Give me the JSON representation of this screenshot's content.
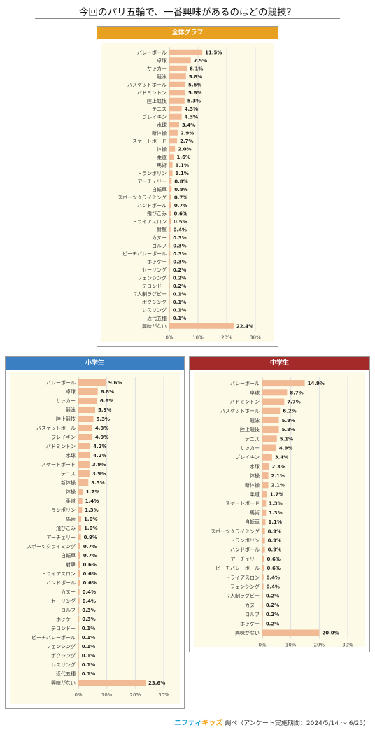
{
  "page": {
    "title": "今回のパリ五輪で、一番興味があるのはどの競技？"
  },
  "footer": {
    "logo_a": "ニフティ",
    "logo_b": "キッズ",
    "text": "調べ（アンケート実施期間：2024/5/14 ～ 6/25）"
  },
  "colors": {
    "bar": "#f2b995",
    "grid": "#dedede",
    "all_header": "#e8a020",
    "elem_header": "#3a7fc1",
    "mid_header": "#a42a2a"
  },
  "chart_data": [
    {
      "id": "all",
      "type": "bar",
      "orientation": "horizontal",
      "title": "全体グラフ",
      "xlim": [
        0,
        30
      ],
      "xticks": [
        "0%",
        "10%",
        "20%",
        "30%"
      ],
      "grid": true,
      "categories": [
        "バレーボール",
        "卓球",
        "サッカー",
        "競泳",
        "バスケットボール",
        "バドミントン",
        "陸上競技",
        "テニス",
        "ブレイキン",
        "水球",
        "新体操",
        "スケートボード",
        "体操",
        "柔道",
        "馬術",
        "トランポリン",
        "アーチェリー",
        "自転車",
        "スポーツクライミング",
        "ハンドボール",
        "飛びこみ",
        "トライアスロン",
        "射撃",
        "カヌー",
        "ゴルフ",
        "ビーチバレーボール",
        "ホッケー",
        "セーリング",
        "フェンシング",
        "テコンドー",
        "7人制ラグビー",
        "ボクシング",
        "レスリング",
        "近代五種",
        "興味がない"
      ],
      "values": [
        11.5,
        7.5,
        6.1,
        5.8,
        5.6,
        5.6,
        5.3,
        4.3,
        4.3,
        3.4,
        2.9,
        2.7,
        2.0,
        1.6,
        1.1,
        1.1,
        0.8,
        0.8,
        0.7,
        0.7,
        0.6,
        0.5,
        0.4,
        0.3,
        0.3,
        0.3,
        0.3,
        0.2,
        0.2,
        0.2,
        0.1,
        0.1,
        0.1,
        0.1,
        22.4
      ],
      "value_labels": [
        "11.5%",
        "7.5%",
        "6.1%",
        "5.8%",
        "5.6%",
        "5.6%",
        "5.3%",
        "4.3%",
        "4.3%",
        "3.4%",
        "2.9%",
        "2.7%",
        "2.0%",
        "1.6%",
        "1.1%",
        "1.1%",
        "0.8%",
        "0.8%",
        "0.7%",
        "0.7%",
        "0.6%",
        "0.5%",
        "0.4%",
        "0.3%",
        "0.3%",
        "0.3%",
        "0.3%",
        "0.2%",
        "0.2%",
        "0.2%",
        "0.1%",
        "0.1%",
        "0.1%",
        "0.1%",
        "22.4%"
      ]
    },
    {
      "id": "elem",
      "type": "bar",
      "orientation": "horizontal",
      "title": "小学生",
      "xlim": [
        0,
        30
      ],
      "xticks": [
        "0%",
        "10%",
        "20%",
        "30%"
      ],
      "grid": true,
      "categories": [
        "バレーボール",
        "卓球",
        "サッカー",
        "競泳",
        "陸上競技",
        "バスケットボール",
        "ブレイキン",
        "バドミントン",
        "水球",
        "スケートボード",
        "テニス",
        "新体操",
        "体操",
        "柔道",
        "トランポリン",
        "馬術",
        "飛びこみ",
        "アーチェリー",
        "スポーツクライミング",
        "自転車",
        "射撃",
        "トライアスロン",
        "ハンドボール",
        "カヌー",
        "セーリング",
        "ゴルフ",
        "ホッケー",
        "テコンドー",
        "ビーチバレーボール",
        "フェンシング",
        "ボクシング",
        "レスリング",
        "近代五種",
        "興味がない"
      ],
      "values": [
        9.6,
        6.8,
        6.6,
        5.9,
        5.3,
        4.9,
        4.9,
        4.2,
        4.2,
        3.9,
        3.9,
        3.5,
        1.7,
        1.4,
        1.3,
        1.0,
        1.0,
        0.9,
        0.7,
        0.7,
        0.6,
        0.6,
        0.6,
        0.4,
        0.4,
        0.3,
        0.3,
        0.1,
        0.1,
        0.1,
        0.1,
        0.1,
        0.1,
        23.6
      ],
      "value_labels": [
        "9.6%",
        "6.8%",
        "6.6%",
        "5.9%",
        "5.3%",
        "4.9%",
        "4.9%",
        "4.2%",
        "4.2%",
        "3.9%",
        "3.9%",
        "3.5%",
        "1.7%",
        "1.4%",
        "1.3%",
        "1.0%",
        "1.0%",
        "0.9%",
        "0.7%",
        "0.7%",
        "0.6%",
        "0.6%",
        "0.6%",
        "0.4%",
        "0.4%",
        "0.3%",
        "0.3%",
        "0.1%",
        "0.1%",
        "0.1%",
        "0.1%",
        "0.1%",
        "0.1%",
        "23.6%"
      ]
    },
    {
      "id": "mid",
      "type": "bar",
      "orientation": "horizontal",
      "title": "中学生",
      "xlim": [
        0,
        30
      ],
      "xticks": [
        "0%",
        "10%",
        "20%",
        "30%"
      ],
      "grid": true,
      "categories": [
        "バレーボール",
        "卓球",
        "バドミントン",
        "バスケットボール",
        "競泳",
        "陸上競技",
        "テニス",
        "サッカー",
        "ブレイキン",
        "水球",
        "体操",
        "新体操",
        "柔道",
        "スケートボード",
        "馬術",
        "自転車",
        "スポーツクライミング",
        "トランポリン",
        "ハンドボール",
        "アーチェリー",
        "ビーチバレーボール",
        "トライアスロン",
        "フェンシング",
        "7人制ラグビー",
        "カヌー",
        "ゴルフ",
        "ホッケー",
        "興味がない"
      ],
      "values": [
        14.9,
        8.7,
        7.7,
        6.2,
        5.8,
        5.8,
        5.1,
        4.9,
        3.4,
        2.3,
        2.1,
        2.1,
        1.7,
        1.3,
        1.3,
        1.1,
        0.9,
        0.9,
        0.9,
        0.6,
        0.6,
        0.4,
        0.4,
        0.2,
        0.2,
        0.2,
        0.2,
        20.0
      ],
      "value_labels": [
        "14.9%",
        "8.7%",
        "7.7%",
        "6.2%",
        "5.8%",
        "5.8%",
        "5.1%",
        "4.9%",
        "3.4%",
        "2.3%",
        "2.1%",
        "2.1%",
        "1.7%",
        "1.3%",
        "1.3%",
        "1.1%",
        "0.9%",
        "0.9%",
        "0.9%",
        "0.6%",
        "0.6%",
        "0.4%",
        "0.4%",
        "0.2%",
        "0.2%",
        "0.2%",
        "0.2%",
        "20.0%"
      ]
    }
  ]
}
